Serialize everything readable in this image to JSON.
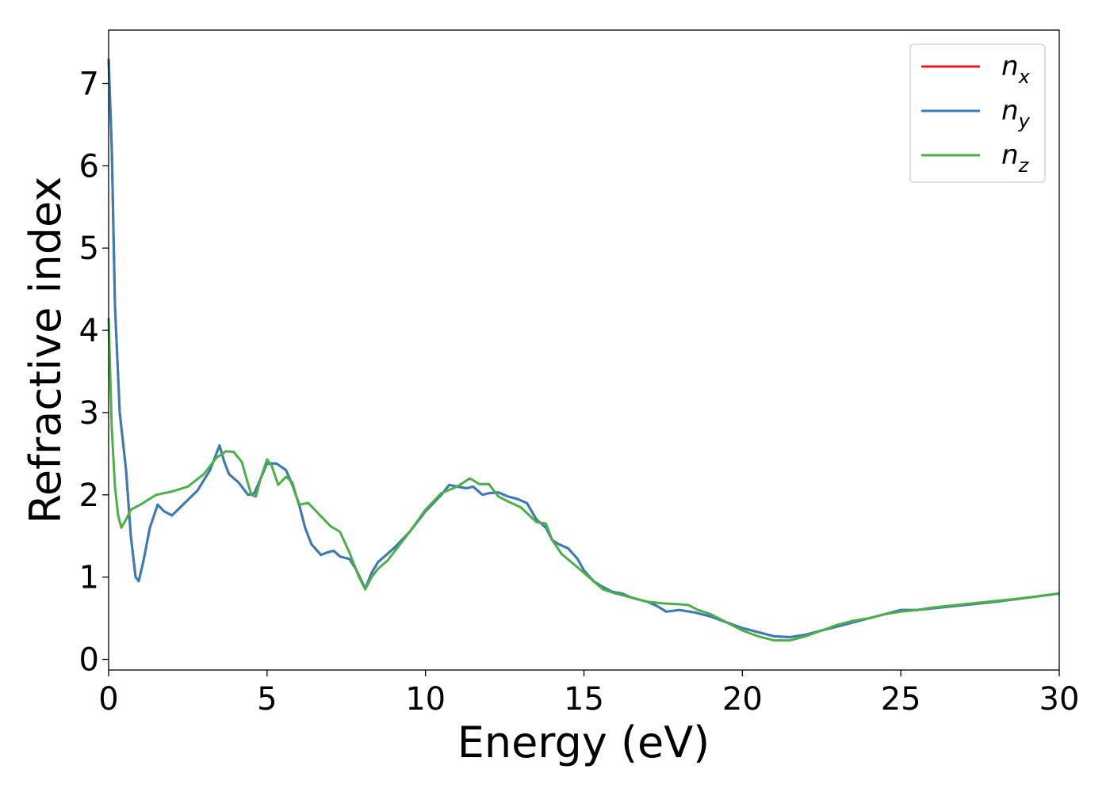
{
  "chart_data": {
    "type": "line",
    "xlabel": "Energy (eV)",
    "ylabel": "Refractive index",
    "xlim": [
      0,
      30
    ],
    "ylim": [
      -0.13,
      7.65
    ],
    "xticks": [
      0,
      5,
      10,
      15,
      20,
      25,
      30
    ],
    "yticks": [
      0,
      1,
      2,
      3,
      4,
      5,
      6,
      7
    ],
    "grid": false,
    "legend_position": "top-right",
    "series": [
      {
        "name": "n_x",
        "legend_base": "n",
        "legend_sub": "x",
        "color": "#e41a1c",
        "points": [
          [
            0,
            7.3
          ],
          [
            0.1,
            6.2
          ],
          [
            0.2,
            4.3
          ],
          [
            0.35,
            3.0
          ],
          [
            0.55,
            2.3
          ],
          [
            0.7,
            1.5
          ],
          [
            0.85,
            1.0
          ],
          [
            0.95,
            0.95
          ],
          [
            1.1,
            1.2
          ],
          [
            1.3,
            1.6
          ],
          [
            1.55,
            1.88
          ],
          [
            1.75,
            1.8
          ],
          [
            2.0,
            1.75
          ],
          [
            2.4,
            1.9
          ],
          [
            2.8,
            2.05
          ],
          [
            3.2,
            2.3
          ],
          [
            3.5,
            2.6
          ],
          [
            3.65,
            2.4
          ],
          [
            3.8,
            2.25
          ],
          [
            4.1,
            2.15
          ],
          [
            4.4,
            2.0
          ],
          [
            4.6,
            2.02
          ],
          [
            4.8,
            2.2
          ],
          [
            5.0,
            2.38
          ],
          [
            5.3,
            2.38
          ],
          [
            5.6,
            2.3
          ],
          [
            5.8,
            2.12
          ],
          [
            6.0,
            1.9
          ],
          [
            6.2,
            1.6
          ],
          [
            6.4,
            1.4
          ],
          [
            6.7,
            1.27
          ],
          [
            6.9,
            1.3
          ],
          [
            7.1,
            1.32
          ],
          [
            7.3,
            1.25
          ],
          [
            7.6,
            1.22
          ],
          [
            7.8,
            1.1
          ],
          [
            8.1,
            0.86
          ],
          [
            8.3,
            1.05
          ],
          [
            8.5,
            1.18
          ],
          [
            9.0,
            1.35
          ],
          [
            9.5,
            1.55
          ],
          [
            10.0,
            1.8
          ],
          [
            10.5,
            2.0
          ],
          [
            10.75,
            2.12
          ],
          [
            11.0,
            2.1
          ],
          [
            11.3,
            2.08
          ],
          [
            11.5,
            2.1
          ],
          [
            11.8,
            2.0
          ],
          [
            12.0,
            2.02
          ],
          [
            12.3,
            2.03
          ],
          [
            12.6,
            1.98
          ],
          [
            12.9,
            1.95
          ],
          [
            13.2,
            1.9
          ],
          [
            13.5,
            1.7
          ],
          [
            13.8,
            1.6
          ],
          [
            14.0,
            1.45
          ],
          [
            14.2,
            1.4
          ],
          [
            14.5,
            1.35
          ],
          [
            14.8,
            1.22
          ],
          [
            15.0,
            1.08
          ],
          [
            15.3,
            0.95
          ],
          [
            15.6,
            0.88
          ],
          [
            15.9,
            0.82
          ],
          [
            16.2,
            0.8
          ],
          [
            16.5,
            0.75
          ],
          [
            17.0,
            0.7
          ],
          [
            17.3,
            0.65
          ],
          [
            17.6,
            0.58
          ],
          [
            18.0,
            0.6
          ],
          [
            18.5,
            0.57
          ],
          [
            19.0,
            0.52
          ],
          [
            19.5,
            0.45
          ],
          [
            20.0,
            0.38
          ],
          [
            20.5,
            0.33
          ],
          [
            21.0,
            0.28
          ],
          [
            21.5,
            0.27
          ],
          [
            22.0,
            0.3
          ],
          [
            22.5,
            0.35
          ],
          [
            23.0,
            0.4
          ],
          [
            23.5,
            0.45
          ],
          [
            24.0,
            0.5
          ],
          [
            24.5,
            0.55
          ],
          [
            25.0,
            0.6
          ],
          [
            25.5,
            0.6
          ],
          [
            26.0,
            0.62
          ],
          [
            27.0,
            0.66
          ],
          [
            28.0,
            0.7
          ],
          [
            29.0,
            0.75
          ],
          [
            30.0,
            0.8
          ]
        ]
      },
      {
        "name": "n_y",
        "legend_base": "n",
        "legend_sub": "y",
        "color": "#377eb8",
        "points": [
          [
            0,
            7.3
          ],
          [
            0.1,
            6.2
          ],
          [
            0.2,
            4.3
          ],
          [
            0.35,
            3.0
          ],
          [
            0.55,
            2.3
          ],
          [
            0.7,
            1.5
          ],
          [
            0.85,
            1.0
          ],
          [
            0.95,
            0.95
          ],
          [
            1.1,
            1.2
          ],
          [
            1.3,
            1.6
          ],
          [
            1.55,
            1.88
          ],
          [
            1.75,
            1.8
          ],
          [
            2.0,
            1.75
          ],
          [
            2.4,
            1.9
          ],
          [
            2.8,
            2.05
          ],
          [
            3.2,
            2.3
          ],
          [
            3.5,
            2.6
          ],
          [
            3.65,
            2.4
          ],
          [
            3.8,
            2.25
          ],
          [
            4.1,
            2.15
          ],
          [
            4.4,
            2.0
          ],
          [
            4.6,
            2.02
          ],
          [
            4.8,
            2.2
          ],
          [
            5.0,
            2.38
          ],
          [
            5.3,
            2.38
          ],
          [
            5.6,
            2.3
          ],
          [
            5.8,
            2.12
          ],
          [
            6.0,
            1.9
          ],
          [
            6.2,
            1.6
          ],
          [
            6.4,
            1.4
          ],
          [
            6.7,
            1.27
          ],
          [
            6.9,
            1.3
          ],
          [
            7.1,
            1.32
          ],
          [
            7.3,
            1.25
          ],
          [
            7.6,
            1.22
          ],
          [
            7.8,
            1.1
          ],
          [
            8.1,
            0.86
          ],
          [
            8.3,
            1.05
          ],
          [
            8.5,
            1.18
          ],
          [
            9.0,
            1.35
          ],
          [
            9.5,
            1.55
          ],
          [
            10.0,
            1.8
          ],
          [
            10.5,
            2.0
          ],
          [
            10.75,
            2.12
          ],
          [
            11.0,
            2.1
          ],
          [
            11.3,
            2.08
          ],
          [
            11.5,
            2.1
          ],
          [
            11.8,
            2.0
          ],
          [
            12.0,
            2.02
          ],
          [
            12.3,
            2.03
          ],
          [
            12.6,
            1.98
          ],
          [
            12.9,
            1.95
          ],
          [
            13.2,
            1.9
          ],
          [
            13.5,
            1.7
          ],
          [
            13.8,
            1.6
          ],
          [
            14.0,
            1.45
          ],
          [
            14.2,
            1.4
          ],
          [
            14.5,
            1.35
          ],
          [
            14.8,
            1.22
          ],
          [
            15.0,
            1.08
          ],
          [
            15.3,
            0.95
          ],
          [
            15.6,
            0.88
          ],
          [
            15.9,
            0.82
          ],
          [
            16.2,
            0.8
          ],
          [
            16.5,
            0.75
          ],
          [
            17.0,
            0.7
          ],
          [
            17.3,
            0.65
          ],
          [
            17.6,
            0.58
          ],
          [
            18.0,
            0.6
          ],
          [
            18.5,
            0.57
          ],
          [
            19.0,
            0.52
          ],
          [
            19.5,
            0.45
          ],
          [
            20.0,
            0.38
          ],
          [
            20.5,
            0.33
          ],
          [
            21.0,
            0.28
          ],
          [
            21.5,
            0.27
          ],
          [
            22.0,
            0.3
          ],
          [
            22.5,
            0.35
          ],
          [
            23.0,
            0.4
          ],
          [
            23.5,
            0.45
          ],
          [
            24.0,
            0.5
          ],
          [
            24.5,
            0.55
          ],
          [
            25.0,
            0.6
          ],
          [
            25.5,
            0.6
          ],
          [
            26.0,
            0.62
          ],
          [
            27.0,
            0.66
          ],
          [
            28.0,
            0.7
          ],
          [
            29.0,
            0.75
          ],
          [
            30.0,
            0.8
          ]
        ]
      },
      {
        "name": "n_z",
        "legend_base": "n",
        "legend_sub": "z",
        "color": "#4daf4a",
        "points": [
          [
            0,
            4.15
          ],
          [
            0.1,
            2.8
          ],
          [
            0.2,
            2.1
          ],
          [
            0.3,
            1.75
          ],
          [
            0.4,
            1.6
          ],
          [
            0.55,
            1.7
          ],
          [
            0.7,
            1.82
          ],
          [
            1.0,
            1.88
          ],
          [
            1.5,
            2.0
          ],
          [
            2.0,
            2.04
          ],
          [
            2.5,
            2.1
          ],
          [
            3.0,
            2.25
          ],
          [
            3.4,
            2.45
          ],
          [
            3.7,
            2.53
          ],
          [
            3.95,
            2.52
          ],
          [
            4.2,
            2.4
          ],
          [
            4.5,
            2.0
          ],
          [
            4.65,
            1.98
          ],
          [
            4.8,
            2.2
          ],
          [
            5.0,
            2.43
          ],
          [
            5.15,
            2.35
          ],
          [
            5.35,
            2.12
          ],
          [
            5.6,
            2.22
          ],
          [
            5.8,
            2.15
          ],
          [
            6.0,
            1.88
          ],
          [
            6.3,
            1.9
          ],
          [
            6.5,
            1.82
          ],
          [
            6.8,
            1.7
          ],
          [
            7.0,
            1.62
          ],
          [
            7.3,
            1.55
          ],
          [
            7.6,
            1.3
          ],
          [
            7.9,
            1.0
          ],
          [
            8.1,
            0.85
          ],
          [
            8.3,
            1.0
          ],
          [
            8.5,
            1.1
          ],
          [
            8.8,
            1.2
          ],
          [
            9.0,
            1.3
          ],
          [
            9.5,
            1.55
          ],
          [
            10.0,
            1.82
          ],
          [
            10.5,
            2.02
          ],
          [
            11.0,
            2.1
          ],
          [
            11.2,
            2.15
          ],
          [
            11.4,
            2.2
          ],
          [
            11.7,
            2.13
          ],
          [
            12.0,
            2.13
          ],
          [
            12.3,
            1.98
          ],
          [
            12.6,
            1.92
          ],
          [
            13.0,
            1.85
          ],
          [
            13.5,
            1.67
          ],
          [
            13.8,
            1.65
          ],
          [
            14.0,
            1.45
          ],
          [
            14.3,
            1.28
          ],
          [
            14.7,
            1.15
          ],
          [
            15.0,
            1.05
          ],
          [
            15.3,
            0.95
          ],
          [
            15.6,
            0.85
          ],
          [
            16.0,
            0.8
          ],
          [
            16.5,
            0.75
          ],
          [
            17.0,
            0.7
          ],
          [
            17.5,
            0.68
          ],
          [
            18.0,
            0.67
          ],
          [
            18.3,
            0.66
          ],
          [
            18.6,
            0.6
          ],
          [
            19.0,
            0.55
          ],
          [
            19.5,
            0.45
          ],
          [
            20.0,
            0.35
          ],
          [
            20.5,
            0.28
          ],
          [
            21.0,
            0.23
          ],
          [
            21.5,
            0.23
          ],
          [
            22.0,
            0.28
          ],
          [
            22.5,
            0.35
          ],
          [
            23.0,
            0.42
          ],
          [
            23.5,
            0.47
          ],
          [
            24.0,
            0.5
          ],
          [
            24.5,
            0.55
          ],
          [
            25.0,
            0.58
          ],
          [
            25.5,
            0.6
          ],
          [
            26.0,
            0.63
          ],
          [
            27.0,
            0.67
          ],
          [
            28.0,
            0.71
          ],
          [
            29.0,
            0.75
          ],
          [
            30.0,
            0.8
          ]
        ]
      }
    ]
  }
}
